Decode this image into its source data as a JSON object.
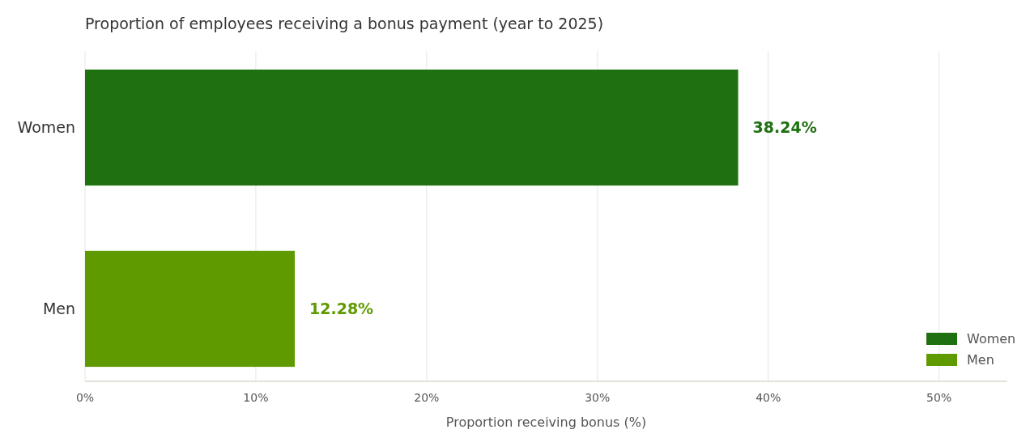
{
  "chart_data": {
    "type": "bar",
    "orientation": "horizontal",
    "title": "Proportion of employees receiving a bonus payment (year to 2025)",
    "xlabel": "Proportion receiving bonus (%)",
    "categories": [
      "Women",
      "Men"
    ],
    "series": [
      {
        "name": "Women",
        "color": "#1f7010",
        "values": [
          38.24,
          null
        ],
        "value_labels": [
          "38.24%",
          null
        ]
      },
      {
        "name": "Men",
        "color": "#5f9a00",
        "values": [
          null,
          12.28
        ],
        "value_labels": [
          null,
          "12.28%"
        ]
      }
    ],
    "xlim": [
      0,
      54
    ],
    "xticks": [
      {
        "value": 0,
        "label": "0%"
      },
      {
        "value": 10,
        "label": "10%"
      },
      {
        "value": 20,
        "label": "20%"
      },
      {
        "value": 30,
        "label": "30%"
      },
      {
        "value": 40,
        "label": "40%"
      },
      {
        "value": 50,
        "label": "50%"
      }
    ],
    "grid": "x",
    "legend": "bottom right"
  }
}
